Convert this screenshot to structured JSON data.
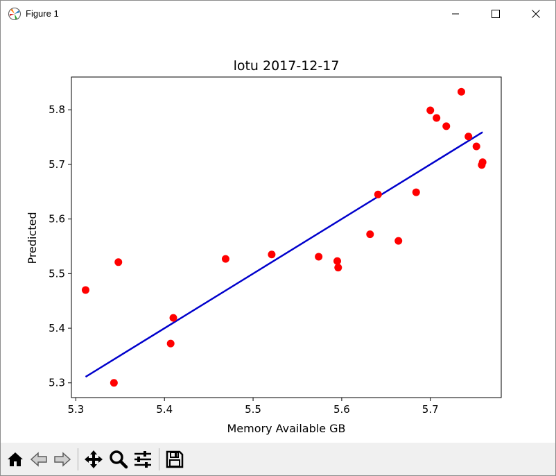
{
  "window": {
    "title": "Figure 1"
  },
  "toolbar": {
    "buttons": [
      "home-icon",
      "back-icon",
      "forward-icon",
      "pan-icon",
      "zoom-icon",
      "configure-subplots-icon",
      "save-icon"
    ]
  },
  "chart_data": {
    "type": "scatter",
    "title": "lotu 2017-12-17",
    "xlabel": "Memory Available GB",
    "ylabel": "Predicted",
    "xlim": [
      5.295,
      5.78
    ],
    "ylim": [
      5.273,
      5.86
    ],
    "xticks": [
      5.3,
      5.4,
      5.5,
      5.6,
      5.7
    ],
    "xtick_labels": [
      "5.3",
      "5.4",
      "5.5",
      "5.6",
      "5.7"
    ],
    "yticks": [
      5.3,
      5.4,
      5.5,
      5.6,
      5.7,
      5.8
    ],
    "ytick_labels": [
      "5.3",
      "5.4",
      "5.5",
      "5.6",
      "5.7",
      "5.8"
    ],
    "grid": false,
    "points": {
      "color": "#ff0000",
      "x": [
        5.311,
        5.343,
        5.348,
        5.407,
        5.41,
        5.469,
        5.521,
        5.574,
        5.595,
        5.596,
        5.632,
        5.641,
        5.664,
        5.684,
        5.7,
        5.707,
        5.718,
        5.735,
        5.743,
        5.752,
        5.758,
        5.759
      ],
      "y": [
        5.47,
        5.3,
        5.521,
        5.372,
        5.419,
        5.527,
        5.535,
        5.531,
        5.523,
        5.511,
        5.572,
        5.645,
        5.56,
        5.649,
        5.799,
        5.785,
        5.77,
        5.833,
        5.751,
        5.733,
        5.699,
        5.704
      ]
    },
    "fit_line": {
      "color": "#0000cc",
      "x": [
        5.311,
        5.759
      ],
      "y": [
        5.311,
        5.759
      ]
    }
  }
}
